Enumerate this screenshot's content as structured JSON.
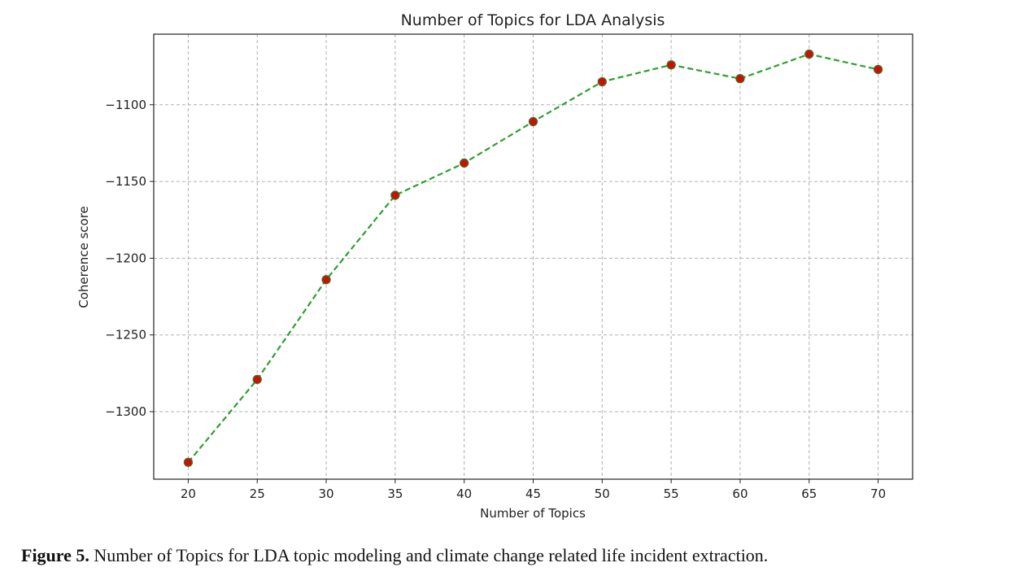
{
  "chart_data": {
    "type": "line",
    "title": "Number of Topics for LDA Analysis",
    "xlabel": "Number of Topics",
    "ylabel": "Coherence score",
    "x": [
      20,
      25,
      30,
      35,
      40,
      45,
      50,
      55,
      60,
      65,
      70
    ],
    "xticks": [
      "20",
      "25",
      "30",
      "35",
      "40",
      "45",
      "50",
      "55",
      "60",
      "65",
      "70"
    ],
    "series": [
      {
        "values": [
          -1333,
          -1279,
          -1214,
          -1159,
          -1138,
          -1111,
          -1085,
          -1074,
          -1083,
          -1067,
          -1077
        ]
      }
    ],
    "yticks": [
      {
        "value": -1100,
        "label": "−1100"
      },
      {
        "value": -1150,
        "label": "−1150"
      },
      {
        "value": -1200,
        "label": "−1200"
      },
      {
        "value": -1250,
        "label": "−1250"
      },
      {
        "value": -1300,
        "label": "−1300"
      }
    ],
    "xlim": [
      17.5,
      72.5
    ],
    "ylim": [
      -1344,
      -1054
    ],
    "grid": true,
    "line_style": "dashed",
    "colors": {
      "line": "#2ca02c",
      "marker_face": "#cc1100",
      "marker_edge": "#4a6b2a",
      "grid": "#b0b0b0"
    }
  },
  "caption": {
    "label": "Figure 5.",
    "text": " Number of Topics for LDA topic modeling and climate change related life incident extraction."
  }
}
